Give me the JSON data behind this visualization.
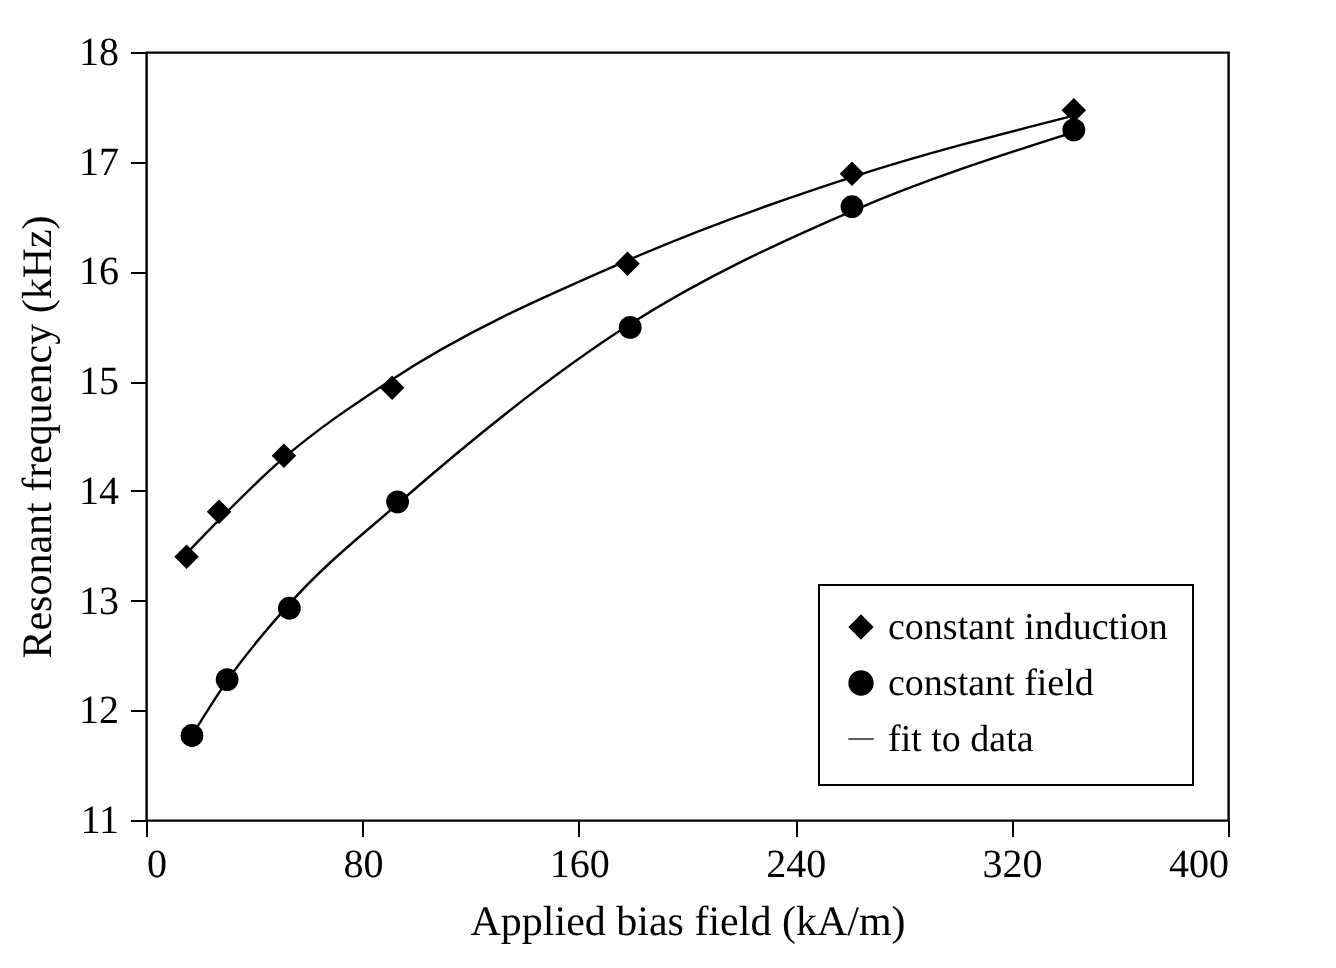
{
  "chart_data": {
    "type": "scatter",
    "xlabel": "Applied bias field (kA/m)",
    "ylabel": "Resonant frequency (kHz)",
    "xlim": [
      0,
      400
    ],
    "xticks": [
      0,
      80,
      160,
      240,
      320,
      400
    ],
    "ylim": [
      11,
      18
    ],
    "yticks": [
      11,
      12,
      13,
      14,
      15,
      16,
      17,
      18
    ],
    "grid": false,
    "legend": "bottom right",
    "series": [
      {
        "name": "constant induction",
        "marker": "diamond",
        "color": "#000000",
        "x": [
          15,
          27,
          51,
          91,
          178,
          261,
          343
        ],
        "values": [
          13.4,
          13.81,
          14.32,
          14.94,
          16.07,
          16.89,
          17.47
        ]
      },
      {
        "name": "constant field",
        "marker": "circle",
        "color": "#000000",
        "x": [
          17,
          30,
          53,
          93,
          179,
          261,
          343
        ],
        "values": [
          11.77,
          12.28,
          12.93,
          13.9,
          15.49,
          16.59,
          17.29
        ]
      },
      {
        "name": "fit to data",
        "type": "line",
        "line_style": "solid",
        "color": "#000000",
        "x": [
          15,
          50,
          90,
          178,
          261,
          343
        ],
        "values": [
          13.43,
          14.28,
          15.0,
          16.1,
          16.86,
          17.42
        ]
      },
      {
        "type": "line",
        "line_style": "solid",
        "color": "#000000",
        "x": [
          17,
          30,
          53,
          93,
          179,
          261,
          343
        ],
        "values": [
          11.77,
          12.27,
          12.97,
          13.88,
          15.52,
          16.55,
          17.27
        ]
      }
    ]
  }
}
